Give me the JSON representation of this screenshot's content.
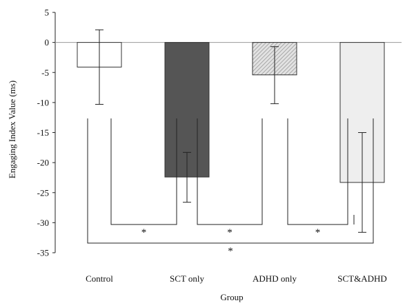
{
  "chart_data": {
    "type": "bar",
    "title": "",
    "xlabel": "Group",
    "ylabel": "Engaging Index Value (ms)",
    "ylim": [
      -35,
      5
    ],
    "yticks": [
      5,
      0,
      -5,
      -10,
      -15,
      -20,
      -25,
      -30,
      -35
    ],
    "grid": false,
    "categories": [
      "Control",
      "SCT only",
      "ADHD only",
      "SCT&ADHD"
    ],
    "values": [
      -4.1,
      -22.4,
      -5.4,
      -23.3
    ],
    "error_bars": [
      {
        "lower": -10.3,
        "upper": 2.1
      },
      {
        "lower": -26.6,
        "upper": -18.3
      },
      {
        "lower": -10.2,
        "upper": -0.7
      },
      {
        "lower": -31.6,
        "upper": -15.0
      }
    ],
    "bar_fills": [
      "#ffffff",
      "#555555",
      "hatched-light-gray",
      "#eeeeee"
    ],
    "significance": [
      {
        "pair": [
          "Control",
          "SCT only"
        ],
        "label": "*"
      },
      {
        "pair": [
          "SCT only",
          "ADHD only"
        ],
        "label": "*"
      },
      {
        "pair": [
          "ADHD only",
          "SCT&ADHD"
        ],
        "label": "*"
      },
      {
        "pair": [
          "Control",
          "SCT&ADHD"
        ],
        "label": "*"
      }
    ]
  }
}
